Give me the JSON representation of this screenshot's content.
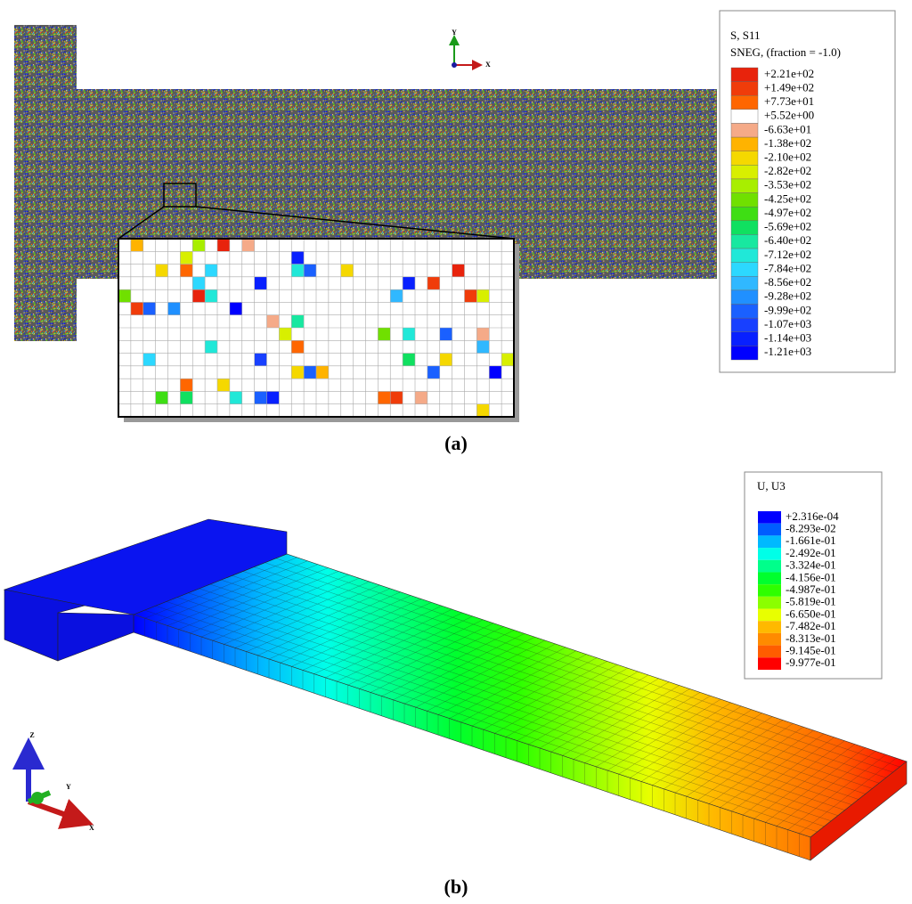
{
  "panel_a": {
    "legend": {
      "title_lines": [
        "S, S11",
        "SNEG, (fraction = -1.0)"
      ],
      "labels": [
        "+2.21e+02",
        "+1.49e+02",
        "+7.73e+01",
        "+5.52e+00",
        "-6.63e+01",
        "-1.38e+02",
        "-2.10e+02",
        "-2.82e+02",
        "-3.53e+02",
        "-4.25e+02",
        "-4.97e+02",
        "-5.69e+02",
        "-6.40e+02",
        "-7.12e+02",
        "-7.84e+02",
        "-8.56e+02",
        "-9.28e+02",
        "-9.99e+02",
        "-1.07e+03",
        "-1.14e+03",
        "-1.21e+03"
      ],
      "colors": [
        "#e8230c",
        "#f03c0a",
        "#ff6600",
        "#ffffff",
        "#f5aa88",
        "#ffb300",
        "#f5d800",
        "#d8ef00",
        "#a8ee00",
        "#70e000",
        "#3ede14",
        "#10e060",
        "#18e8a0",
        "#20e8d8",
        "#2cd8ff",
        "#30b8ff",
        "#2090ff",
        "#1a60ff",
        "#1840ff",
        "#0820ff",
        "#0000ff"
      ]
    },
    "triad": {
      "y": "Y",
      "x": "X"
    },
    "caption": "(a)"
  },
  "panel_b": {
    "legend": {
      "title": "U, U3",
      "labels": [
        "+2.316e-04",
        "-8.293e-02",
        "-1.661e-01",
        "-2.492e-01",
        "-3.324e-01",
        "-4.156e-01",
        "-4.987e-01",
        "-5.819e-01",
        "-6.650e-01",
        "-7.482e-01",
        "-8.313e-01",
        "-9.145e-01",
        "-9.977e-01"
      ],
      "colors": [
        "#0000ff",
        "#005dff",
        "#00b9ff",
        "#00ffe8",
        "#00ff8b",
        "#00ff2e",
        "#2eff00",
        "#8bff00",
        "#e8ff00",
        "#ffb900",
        "#ff8b00",
        "#ff5d00",
        "#ff0000"
      ]
    },
    "triad": {
      "z": "Z",
      "y": "Y",
      "x": "X"
    },
    "caption": "(b)"
  }
}
